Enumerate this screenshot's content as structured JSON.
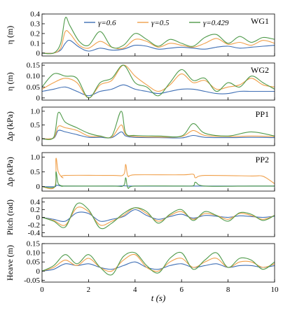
{
  "colors": {
    "gamma_0_6": "#3f6fb5",
    "gamma_0_5": "#f0a04b",
    "gamma_0_429": "#4f9a4a"
  },
  "legend": {
    "items": [
      {
        "label": "γ=0.6"
      },
      {
        "label": "γ=0.5"
      },
      {
        "label": "γ=0.429"
      }
    ],
    "placement": "top of first panel"
  },
  "xaxis": {
    "label": "t (s)",
    "ticks": [
      "0",
      "2",
      "4",
      "6",
      "8",
      "10"
    ],
    "lim": [
      0,
      10
    ]
  },
  "chart_data": [
    {
      "type": "line",
      "panel_label": "WG1",
      "ylabel": "η (m)",
      "ylim": [
        -0.03,
        0.4
      ],
      "yticks": [
        "0",
        "0.1",
        "0.2",
        "0.3",
        "0.4"
      ],
      "series": [
        {
          "name": "γ=0.6",
          "x": [
            0,
            0.5,
            0.8,
            1.0,
            1.2,
            1.6,
            2.0,
            2.5,
            3.0,
            3.5,
            4.0,
            4.5,
            5.0,
            5.5,
            6.0,
            6.5,
            7.0,
            7.5,
            8.0,
            8.5,
            9.0,
            9.5,
            10
          ],
          "y": [
            0,
            0,
            0.03,
            0.1,
            0.13,
            0.06,
            0.02,
            0.05,
            0.03,
            0.04,
            0.08,
            0.07,
            0.04,
            0.05,
            0.06,
            0.05,
            0.04,
            0.06,
            0.07,
            0.05,
            0.06,
            0.07,
            0.08
          ]
        },
        {
          "name": "γ=0.5",
          "x": [
            0,
            0.5,
            0.8,
            1.0,
            1.2,
            1.6,
            2.0,
            2.5,
            3.0,
            3.5,
            4.0,
            4.5,
            5.0,
            5.5,
            6.0,
            6.5,
            7.0,
            7.5,
            8.0,
            8.5,
            9.0,
            9.5,
            10
          ],
          "y": [
            0,
            0,
            0.05,
            0.22,
            0.2,
            0.08,
            0.05,
            0.12,
            0.06,
            0.05,
            0.14,
            0.12,
            0.06,
            0.1,
            0.08,
            0.06,
            0.1,
            0.15,
            0.09,
            0.11,
            0.08,
            0.13,
            0.1
          ]
        },
        {
          "name": "γ=0.429",
          "x": [
            0,
            0.5,
            0.8,
            1.0,
            1.2,
            1.6,
            2.0,
            2.5,
            3.0,
            3.5,
            4.0,
            4.5,
            5.0,
            5.5,
            6.0,
            6.5,
            7.0,
            7.5,
            8.0,
            8.5,
            9.0,
            9.5,
            10
          ],
          "y": [
            0,
            0,
            0.1,
            0.36,
            0.28,
            0.12,
            0.08,
            0.22,
            0.06,
            0.08,
            0.2,
            0.14,
            0.07,
            0.14,
            0.1,
            0.07,
            0.16,
            0.19,
            0.1,
            0.17,
            0.11,
            0.16,
            0.14
          ]
        }
      ]
    },
    {
      "type": "line",
      "panel_label": "WG2",
      "ylabel": "η (m)",
      "ylim": [
        -0.01,
        0.16
      ],
      "yticks": [
        "0",
        "0.05",
        "0.10",
        "0.15"
      ],
      "series": [
        {
          "name": "γ=0.6",
          "x": [
            0,
            0.5,
            1.0,
            1.5,
            2.0,
            2.5,
            3.0,
            3.5,
            4.0,
            4.5,
            5.0,
            5.5,
            6.0,
            6.5,
            7.0,
            7.5,
            8.0,
            8.5,
            9.0,
            9.5,
            10
          ],
          "y": [
            0.03,
            0.04,
            0.05,
            0.03,
            0.01,
            0.03,
            0.04,
            0.06,
            0.04,
            0.03,
            0.02,
            0.03,
            0.04,
            0.04,
            0.03,
            0.02,
            0.02,
            0.03,
            0.03,
            0.03,
            0.03
          ]
        },
        {
          "name": "γ=0.5",
          "x": [
            0,
            0.5,
            1.0,
            1.5,
            2.0,
            2.5,
            3.0,
            3.5,
            4.0,
            4.5,
            5.0,
            5.5,
            6.0,
            6.5,
            7.0,
            7.5,
            8.0,
            8.5,
            9.0,
            9.5,
            10
          ],
          "y": [
            0.04,
            0.07,
            0.09,
            0.07,
            0.0,
            0.06,
            0.08,
            0.15,
            0.1,
            0.06,
            0.03,
            0.06,
            0.11,
            0.07,
            0.08,
            0.04,
            0.05,
            0.06,
            0.09,
            0.06,
            0.05
          ]
        },
        {
          "name": "γ=0.429",
          "x": [
            0,
            0.5,
            1.0,
            1.5,
            2.0,
            2.5,
            3.0,
            3.5,
            4.0,
            4.5,
            5.0,
            5.5,
            6.0,
            6.5,
            7.0,
            7.5,
            8.0,
            8.5,
            9.0,
            9.5,
            10
          ],
          "y": [
            0.05,
            0.11,
            0.1,
            0.09,
            0.0,
            0.07,
            0.09,
            0.15,
            0.07,
            0.05,
            0.01,
            0.07,
            0.13,
            0.08,
            0.09,
            0.03,
            0.07,
            0.05,
            0.1,
            0.07,
            0.04
          ]
        }
      ]
    },
    {
      "type": "line",
      "panel_label": "PP1",
      "ylabel": "Δp (kPa)",
      "ylim": [
        -0.25,
        1.15
      ],
      "yticks": [
        "0",
        "0.5",
        "1.0"
      ],
      "series": [
        {
          "name": "γ=0.6",
          "x": [
            0,
            0.5,
            0.7,
            1.0,
            1.5,
            2.0,
            2.5,
            3.0,
            3.4,
            3.6,
            4.0,
            5.0,
            6.0,
            6.5,
            7.0,
            8.0,
            9.0,
            10
          ],
          "y": [
            0,
            0.02,
            0.3,
            0.25,
            0.15,
            0.05,
            0.05,
            0.04,
            0.25,
            0.1,
            0.05,
            0.04,
            0.03,
            0.12,
            0.05,
            0.04,
            0.05,
            0.04
          ]
        },
        {
          "name": "γ=0.5",
          "x": [
            0,
            0.5,
            0.7,
            1.0,
            1.5,
            2.0,
            2.5,
            3.0,
            3.4,
            3.6,
            4.0,
            5.0,
            6.0,
            6.5,
            7.0,
            8.0,
            9.0,
            10
          ],
          "y": [
            0,
            0.03,
            0.45,
            0.4,
            0.3,
            0.1,
            0.08,
            0.06,
            0.5,
            0.15,
            0.08,
            0.06,
            0.08,
            0.3,
            0.12,
            0.08,
            0.1,
            0.08
          ]
        },
        {
          "name": "γ=0.429",
          "x": [
            0,
            0.5,
            0.7,
            1.0,
            1.5,
            2.0,
            2.5,
            3.0,
            3.4,
            3.6,
            4.0,
            5.0,
            6.0,
            6.5,
            7.0,
            8.0,
            9.0,
            10
          ],
          "y": [
            0,
            0.05,
            0.95,
            0.6,
            0.4,
            0.2,
            0.1,
            0.1,
            1.0,
            0.2,
            0.12,
            0.1,
            0.1,
            0.55,
            0.2,
            0.1,
            0.25,
            0.1
          ]
        }
      ]
    },
    {
      "type": "line",
      "panel_label": "PP2",
      "ylabel": "Δp (kPa)",
      "ylim": [
        -0.15,
        1.15
      ],
      "yticks": [
        "0",
        "0.5",
        "1.0"
      ],
      "series": [
        {
          "name": "γ=0.6",
          "x": [
            0,
            0.55,
            0.6,
            0.8,
            1.0,
            3.0,
            3.5,
            3.7,
            4.0,
            6.0,
            9.0,
            10
          ],
          "y": [
            0,
            0,
            0.05,
            0.03,
            0.02,
            0.02,
            0.03,
            0.02,
            0.02,
            0.02,
            0.02,
            0.02
          ]
        },
        {
          "name": "γ=0.5",
          "x": [
            0,
            0.55,
            0.6,
            0.7,
            0.9,
            1.0,
            3.0,
            3.5,
            3.6,
            3.7,
            4.0,
            6.0,
            6.5,
            6.6,
            7.0,
            9.0,
            9.5,
            10
          ],
          "y": [
            0,
            0,
            0.95,
            0.5,
            0.3,
            0.38,
            0.38,
            0.4,
            0.75,
            0.35,
            0.4,
            0.4,
            0.42,
            0.3,
            0.38,
            0.36,
            0.35,
            0.1
          ]
        },
        {
          "name": "γ=0.429",
          "x": [
            0,
            0.55,
            0.6,
            0.7,
            0.9,
            1.0,
            3.0,
            3.5,
            3.6,
            3.7,
            4.0,
            6.0,
            6.5,
            6.6,
            7.0,
            9.0,
            10
          ],
          "y": [
            0,
            0,
            0.5,
            0.1,
            0.02,
            0.02,
            0.02,
            0.03,
            0.3,
            -0.05,
            0.02,
            0.02,
            0.03,
            0.15,
            0.02,
            0.02,
            0.02
          ]
        }
      ]
    },
    {
      "type": "line",
      "panel_label": "",
      "ylabel": "Pitch (rad)",
      "ylim": [
        -0.5,
        0.5
      ],
      "yticks": [
        "-0.4",
        "-0.2",
        "0",
        "0.2",
        "0.4"
      ],
      "series": [
        {
          "name": "γ=0.6",
          "x": [
            0,
            0.5,
            1.0,
            1.5,
            2.0,
            2.5,
            3.0,
            3.5,
            4.0,
            4.5,
            5.0,
            5.5,
            6.0,
            6.5,
            7.0,
            7.5,
            8.0,
            8.5,
            9.0,
            9.5,
            10
          ],
          "y": [
            0,
            -0.05,
            -0.1,
            0.12,
            0.1,
            -0.1,
            -0.05,
            0.02,
            0.2,
            0.05,
            -0.05,
            0.02,
            0.08,
            -0.02,
            0.05,
            0.03,
            0.0,
            0.04,
            0.02,
            0.0,
            0.03
          ]
        },
        {
          "name": "γ=0.5",
          "x": [
            0,
            0.5,
            1.0,
            1.5,
            2.0,
            2.5,
            3.0,
            3.5,
            4.0,
            4.5,
            5.0,
            5.5,
            6.0,
            6.5,
            7.0,
            7.5,
            8.0,
            8.5,
            9.0,
            9.5,
            10
          ],
          "y": [
            0,
            -0.08,
            -0.2,
            0.25,
            0.15,
            -0.2,
            -0.1,
            0.05,
            0.25,
            0.1,
            -0.1,
            0.05,
            0.15,
            -0.05,
            0.1,
            0.05,
            -0.05,
            0.1,
            0.05,
            -0.05,
            0.05
          ]
        },
        {
          "name": "γ=0.429",
          "x": [
            0,
            0.5,
            1.0,
            1.5,
            2.0,
            2.5,
            3.0,
            3.5,
            4.0,
            4.5,
            5.0,
            5.5,
            6.0,
            6.5,
            7.0,
            7.5,
            8.0,
            8.5,
            9.0,
            9.5,
            10
          ],
          "y": [
            0,
            -0.1,
            -0.25,
            0.35,
            0.2,
            -0.28,
            -0.15,
            0.1,
            0.25,
            0.15,
            -0.15,
            0.08,
            0.2,
            -0.08,
            0.15,
            0.05,
            -0.1,
            0.12,
            0.08,
            -0.08,
            0.05
          ]
        }
      ]
    },
    {
      "type": "line",
      "panel_label": "",
      "ylabel": "Heave (m)",
      "ylim": [
        -0.06,
        0.15
      ],
      "yticks": [
        "-0.05",
        "0",
        "0.05",
        "0.10",
        "0.15"
      ],
      "series": [
        {
          "name": "γ=0.6",
          "x": [
            0,
            0.5,
            1.0,
            1.5,
            2.0,
            2.5,
            3.0,
            3.5,
            4.0,
            4.5,
            5.0,
            5.5,
            6.0,
            6.5,
            7.0,
            7.5,
            8.0,
            8.5,
            9.0,
            9.5,
            10
          ],
          "y": [
            0,
            0.01,
            0.04,
            0.03,
            0.04,
            0.02,
            0.01,
            0.03,
            0.05,
            0.02,
            0.01,
            0.03,
            0.04,
            0.02,
            0.03,
            0.04,
            0.02,
            0.03,
            0.03,
            0.02,
            0.03
          ]
        },
        {
          "name": "γ=0.5",
          "x": [
            0,
            0.5,
            1.0,
            1.5,
            2.0,
            2.5,
            3.0,
            3.5,
            4.0,
            4.5,
            5.0,
            5.5,
            6.0,
            6.5,
            7.0,
            7.5,
            8.0,
            8.5,
            9.0,
            9.5,
            10
          ],
          "y": [
            0,
            0.02,
            0.06,
            0.03,
            0.07,
            0.02,
            0.0,
            0.06,
            0.09,
            0.02,
            0.0,
            0.05,
            0.07,
            0.02,
            0.05,
            0.07,
            0.02,
            0.05,
            0.05,
            0.02,
            0.04
          ]
        },
        {
          "name": "γ=0.429",
          "x": [
            0,
            0.5,
            1.0,
            1.5,
            2.0,
            2.5,
            3.0,
            3.5,
            4.0,
            4.5,
            5.0,
            5.5,
            6.0,
            6.5,
            7.0,
            7.5,
            8.0,
            8.5,
            9.0,
            9.5,
            10
          ],
          "y": [
            0,
            0.03,
            0.09,
            0.04,
            0.09,
            0.02,
            -0.02,
            0.08,
            0.1,
            0.03,
            -0.01,
            0.07,
            0.1,
            0.01,
            0.06,
            0.1,
            0.02,
            0.07,
            0.06,
            0.01,
            0.05
          ]
        }
      ]
    }
  ]
}
